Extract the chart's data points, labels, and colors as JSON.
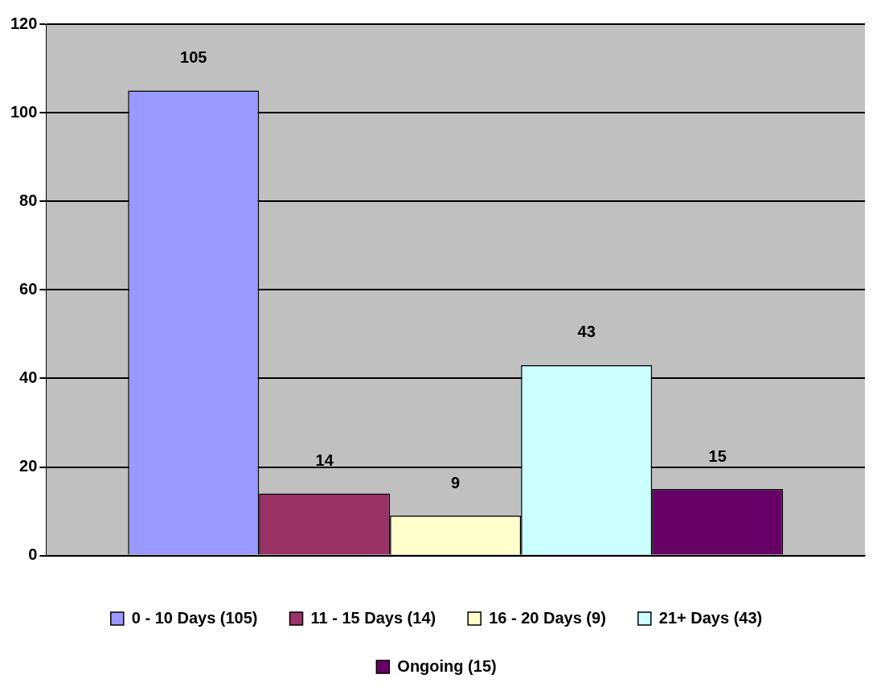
{
  "chart_data": {
    "type": "bar",
    "categories": [
      null
    ],
    "series": [
      {
        "name": "0 - 10 Days (105)",
        "color": "#9999ff",
        "values": [
          105
        ]
      },
      {
        "name": "11 - 15 Days (14)",
        "color": "#993366",
        "values": [
          14
        ]
      },
      {
        "name": "16 - 20 Days (9)",
        "color": "#ffffcc",
        "values": [
          9
        ]
      },
      {
        "name": "21+ Days (43)",
        "color": "#ccffff",
        "values": [
          43
        ]
      },
      {
        "name": "Ongoing (15)",
        "color": "#660066",
        "values": [
          15
        ]
      }
    ],
    "ylim": [
      0,
      120
    ],
    "yticks": [
      0,
      20,
      40,
      60,
      80,
      100,
      120
    ],
    "grid": "y",
    "legend": "bottom",
    "data_labels": true
  }
}
